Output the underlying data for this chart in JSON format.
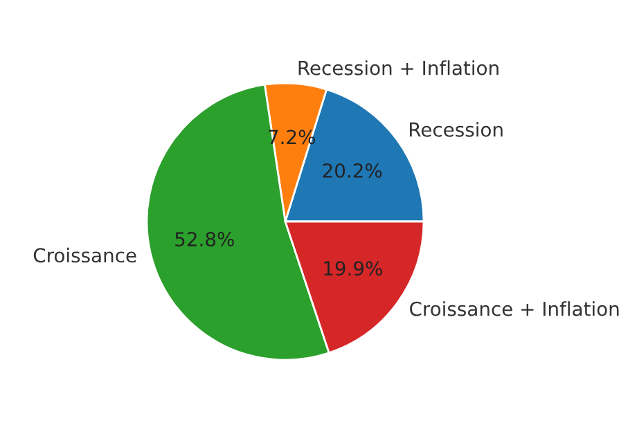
{
  "chart_data": {
    "type": "pie",
    "categories": [
      "Recession",
      "Recession + Inflation",
      "Croissance",
      "Croissance + Inflation"
    ],
    "values": [
      20.2,
      7.2,
      52.8,
      19.9
    ],
    "colors": [
      "#1f77b4",
      "#ff7f0e",
      "#2ca02c",
      "#d62728"
    ],
    "value_labels": [
      "20.2%",
      "7.2%",
      "52.8%",
      "19.9%"
    ]
  }
}
